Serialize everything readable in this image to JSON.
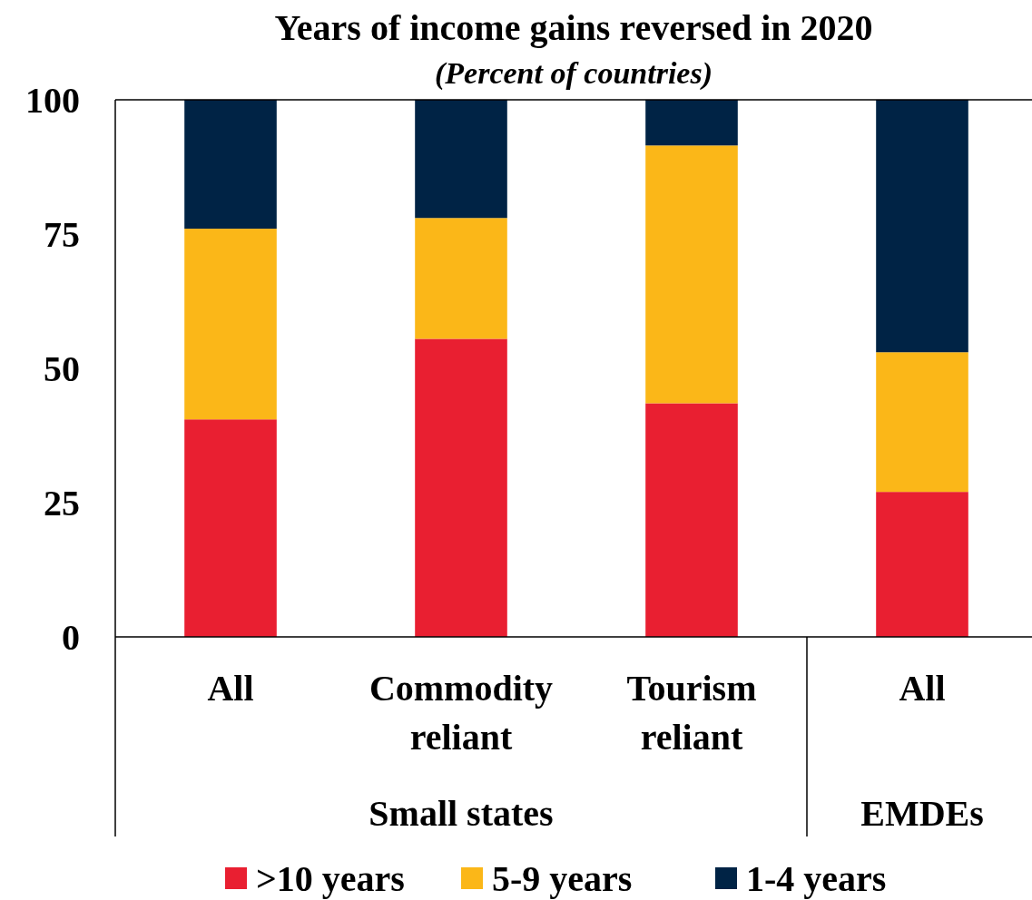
{
  "chart_data": {
    "type": "bar",
    "title": "Years of income gains reversed in 2020",
    "subtitle": "(Percent of countries)",
    "categories": [
      "All",
      "Commodity reliant",
      "Tourism reliant",
      "All"
    ],
    "stacked": true,
    "series": [
      {
        "name": ">10 years",
        "color": "#e91f31",
        "values": [
          40.5,
          55.5,
          43.5,
          27
        ]
      },
      {
        "name": "5-9 years",
        "color": "#fbb718",
        "values": [
          35.5,
          22.5,
          48,
          26
        ]
      },
      {
        "name": "1-4 years",
        "color": "#002345",
        "values": [
          24,
          22,
          8.5,
          47
        ]
      }
    ],
    "ylim": [
      0,
      100
    ],
    "yticks": [
      0,
      25,
      50,
      75,
      100
    ],
    "grid": false,
    "legend": "bottom",
    "annotations": [
      "Small states",
      "EMDEs"
    ]
  }
}
